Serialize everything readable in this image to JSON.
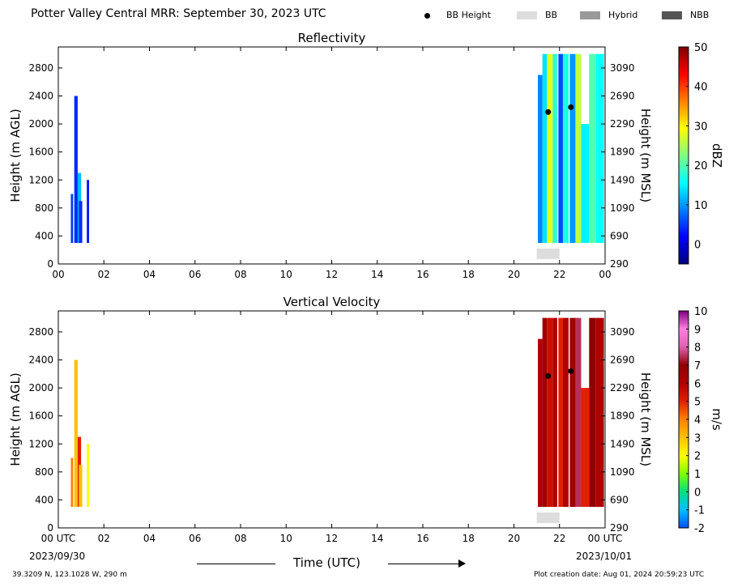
{
  "header": {
    "title": "Potter Valley Central MRR:  September 30, 2023 UTC",
    "legend": [
      {
        "label": "BB Height",
        "marker": "dot",
        "color": "#000000"
      },
      {
        "label": "BB",
        "marker": "box",
        "color": "#dddddd"
      },
      {
        "label": "Hybrid",
        "marker": "box",
        "color": "#999999"
      },
      {
        "label": "NBB",
        "marker": "box",
        "color": "#555555"
      }
    ]
  },
  "footer": {
    "location": "39.3209 N, 123.1028 W, 290 m",
    "creation_date": "Plot creation date: Aug 01, 2024 20:59:23 UTC",
    "time_label": "Time (UTC)",
    "start_date": "2023/09/30",
    "end_date": "2023/10/01"
  },
  "chart_data": [
    {
      "type": "heatmap",
      "title": "Reflectivity",
      "ylabel": "Height (m AGL)",
      "ylabel_right": "Height (m MSL)",
      "ylim": [
        0,
        3100
      ],
      "yticks": [
        "0",
        "400",
        "800",
        "1200",
        "1600",
        "2000",
        "2400",
        "2800"
      ],
      "yticks_right": [
        "290",
        "690",
        "1090",
        "1490",
        "1890",
        "2290",
        "2690",
        "3090"
      ],
      "xlim": [
        0,
        24
      ],
      "xticks": [
        "00",
        "02",
        "04",
        "06",
        "08",
        "10",
        "12",
        "14",
        "16",
        "18",
        "20",
        "22",
        "00"
      ],
      "colorbar": {
        "label": "dBZ",
        "range": [
          -5,
          50
        ],
        "ticks": [
          "0",
          "10",
          "20",
          "30",
          "40",
          "50"
        ],
        "colors": [
          "#00007f",
          "#0000ff",
          "#0080ff",
          "#00ffff",
          "#7fff7f",
          "#ffff00",
          "#ff8000",
          "#ff0000",
          "#7f0000"
        ]
      },
      "bright_band_height": [
        {
          "time": 21.5,
          "height": 2170
        },
        {
          "time": 22.5,
          "height": 2240
        }
      ],
      "bb_flag_periods": [
        {
          "start": 21.0,
          "end": 22.0,
          "type": "BB"
        }
      ],
      "echo_columns": [
        {
          "start": 0.55,
          "end": 0.65,
          "top": 1000,
          "value": 5
        },
        {
          "start": 0.7,
          "end": 0.85,
          "top": 2400,
          "value": 4
        },
        {
          "start": 0.85,
          "end": 1.0,
          "top": 1300,
          "value": 12
        },
        {
          "start": 0.9,
          "end": 1.05,
          "top": 900,
          "value": 4
        },
        {
          "start": 1.25,
          "end": 1.35,
          "top": 1200,
          "value": 3
        },
        {
          "start": 21.05,
          "end": 21.25,
          "top": 2700,
          "value": 9
        },
        {
          "start": 21.25,
          "end": 21.45,
          "top": 3000,
          "value": 14
        },
        {
          "start": 21.45,
          "end": 21.7,
          "top": 3000,
          "value": 28
        },
        {
          "start": 21.7,
          "end": 21.9,
          "top": 3000,
          "value": 18
        },
        {
          "start": 21.95,
          "end": 22.15,
          "top": 3000,
          "value": 6
        },
        {
          "start": 22.15,
          "end": 22.4,
          "top": 3000,
          "value": 17
        },
        {
          "start": 22.45,
          "end": 22.7,
          "top": 3000,
          "value": 10
        },
        {
          "start": 22.7,
          "end": 22.95,
          "top": 3000,
          "value": 26
        },
        {
          "start": 22.95,
          "end": 23.3,
          "top": 2000,
          "value": 15
        },
        {
          "start": 23.3,
          "end": 23.6,
          "top": 3000,
          "value": 20
        },
        {
          "start": 23.6,
          "end": 23.95,
          "top": 3000,
          "value": 16
        }
      ]
    },
    {
      "type": "heatmap",
      "title": "Vertical Velocity",
      "ylabel": "Height (m AGL)",
      "ylabel_right": "Height (m MSL)",
      "ylim": [
        0,
        3100
      ],
      "yticks": [
        "0",
        "400",
        "800",
        "1200",
        "1600",
        "2000",
        "2400",
        "2800"
      ],
      "yticks_right": [
        "290",
        "690",
        "1090",
        "1490",
        "1890",
        "2290",
        "2690",
        "3090"
      ],
      "xlim": [
        0,
        24
      ],
      "xticks": [
        "00 UTC",
        "02",
        "04",
        "06",
        "08",
        "10",
        "12",
        "14",
        "16",
        "18",
        "20",
        "22",
        "00 UTC"
      ],
      "colorbar": {
        "label": "m/s",
        "range": [
          -2,
          10
        ],
        "ticks": [
          "-2",
          "-1",
          "0",
          "1",
          "2",
          "3",
          "4",
          "5",
          "6",
          "7",
          "8",
          "9",
          "10"
        ],
        "colors": [
          "#0050ff",
          "#00c0ff",
          "#00e080",
          "#80ff00",
          "#ffff00",
          "#ffc000",
          "#ff8000",
          "#e02000",
          "#b00000",
          "#900000",
          "#e060b0",
          "#ff80e0",
          "#800080"
        ]
      },
      "bright_band_height": [
        {
          "time": 21.5,
          "height": 2170
        },
        {
          "time": 22.5,
          "height": 2240
        }
      ],
      "bb_flag_periods": [
        {
          "start": 21.0,
          "end": 22.0,
          "type": "BB"
        }
      ],
      "echo_columns": [
        {
          "start": 0.55,
          "end": 0.65,
          "top": 1000,
          "value": 4
        },
        {
          "start": 0.7,
          "end": 0.85,
          "top": 2400,
          "value": 3
        },
        {
          "start": 0.85,
          "end": 1.0,
          "top": 1300,
          "value": 5
        },
        {
          "start": 0.9,
          "end": 1.05,
          "top": 900,
          "value": 3
        },
        {
          "start": 1.25,
          "end": 1.35,
          "top": 1200,
          "value": 2
        },
        {
          "start": 21.05,
          "end": 21.25,
          "top": 2700,
          "value": 6
        },
        {
          "start": 21.25,
          "end": 21.45,
          "top": 3000,
          "value": 6.5
        },
        {
          "start": 21.45,
          "end": 21.7,
          "top": 3000,
          "value": 5.5
        },
        {
          "start": 21.7,
          "end": 21.9,
          "top": 3000,
          "value": 6
        },
        {
          "start": 21.95,
          "end": 22.15,
          "top": 3000,
          "value": 5
        },
        {
          "start": 22.15,
          "end": 22.4,
          "top": 3000,
          "value": 6
        },
        {
          "start": 22.45,
          "end": 22.7,
          "top": 3000,
          "value": 6.5
        },
        {
          "start": 22.7,
          "end": 22.95,
          "top": 3000,
          "value": 7.5
        },
        {
          "start": 22.95,
          "end": 23.3,
          "top": 2000,
          "value": 5
        },
        {
          "start": 23.3,
          "end": 23.6,
          "top": 3000,
          "value": 7
        },
        {
          "start": 23.6,
          "end": 23.95,
          "top": 3000,
          "value": 6
        }
      ]
    }
  ]
}
